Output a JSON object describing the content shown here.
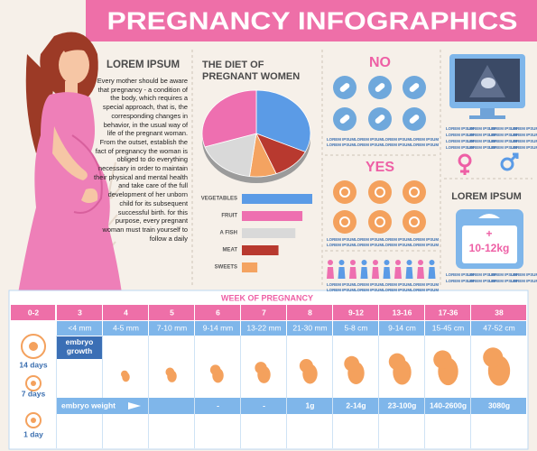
{
  "header": {
    "title": "PREGNANCY INFOGRAPHICS"
  },
  "intro": {
    "heading": "LOREM IPSUM",
    "text": "Every mother should be aware that pregnancy - a condition of the body, which requires a special approach, that is, the corresponding changes in behavior, in the usual way of life of the pregnant woman. From the outset, establish the fact of pregnancy the woman is obliged to do everything necessary in order to maintain their physical and mental health and take care of the full development of her unborn child for its subsequent successful birth. for this purpose, every pregnant woman must train yourself to follow a daily"
  },
  "diet": {
    "title": "THE DIET OF PREGNANT WOMEN",
    "categories": [
      "VEGETABLES",
      "FRUIT",
      "A FISH",
      "MEAT",
      "SWEETS"
    ],
    "values": [
      100,
      86,
      76,
      52,
      22
    ],
    "colors": [
      "#5b9be6",
      "#ee6fb0",
      "#d9d9d9",
      "#b8392f",
      "#f4a361"
    ],
    "pie": {
      "values": [
        32,
        12,
        8,
        18,
        30
      ],
      "colors": [
        "#5b9be6",
        "#b8392f",
        "#f4a361",
        "#d9d9d9",
        "#ee6fb0"
      ]
    }
  },
  "no": {
    "heading": "NO",
    "captions": [
      "LOREM IPSUM",
      "LOREM IPSUM",
      "LOREM IPSUM",
      "LOREM IPSUM",
      "LOREM IPSUM",
      "LOREM IPSUM",
      "LOREM IPSUM",
      "LOREM IPSUM"
    ]
  },
  "yes": {
    "heading": "YES",
    "captions": [
      "LOREM IPSUM",
      "LOREM IPSUM",
      "LOREM IPSUM",
      "LOREM IPSUM",
      "LOREM IPSUM",
      "LOREM IPSUM",
      "LOREM IPSUM",
      "LOREM IPSUM"
    ]
  },
  "people": {
    "captions": [
      "LOREM IPSUM",
      "LOREM IPSUM",
      "LOREM IPSUM",
      "LOREM IPSUM",
      "LOREM IPSUM",
      "LOREM IPSUM",
      "LOREM IPSUM",
      "LOREM IPSUM"
    ]
  },
  "ultrasound": {
    "captions": [
      "LOREM IPSUM",
      "LOREM IPSUM",
      "LOREM IPSUM",
      "LOREM IPSUM",
      "LOREM IPSUM",
      "LOREM IPSUM",
      "LOREM IPSUM",
      "LOREM IPSUM",
      "LOREM IPSUM",
      "LOREM IPSUM",
      "LOREM IPSUM",
      "LOREM IPSUM",
      "LOREM IPSUM",
      "LOREM IPSUM",
      "LOREM IPSUM",
      "LOREM IPSUM"
    ]
  },
  "weight_gain": {
    "heading": "LOREM IPSUM",
    "sign": "+",
    "value": "10-12kg",
    "captions": [
      "LOREM IPSUM",
      "LOREM IPSUM",
      "LOREM IPSUM",
      "LOREM IPSUM",
      "LOREM IPSUM",
      "LOREM IPSUM",
      "LOREM IPSUM",
      "LOREM IPSUM"
    ]
  },
  "timeline": {
    "title": "WEEK OF PREGNANCY",
    "growth_label": "embryo growth",
    "weight_label": "embryo weight",
    "days": [
      "14 days",
      "7 days",
      "1 day"
    ],
    "columns": [
      {
        "week": "0-2"
      },
      {
        "week": "3",
        "size": "<4 mm"
      },
      {
        "week": "4",
        "size": "4-5 mm"
      },
      {
        "week": "5",
        "size": "7-10 mm"
      },
      {
        "week": "6",
        "size": "9-14 mm",
        "weight": "-"
      },
      {
        "week": "7",
        "size": "13-22 mm",
        "weight": "-"
      },
      {
        "week": "8",
        "size": "21-30 mm",
        "weight": "1g"
      },
      {
        "week": "9-12",
        "size": "5-8 cm",
        "weight": "2-14g"
      },
      {
        "week": "13-16",
        "size": "9-14 cm",
        "weight": "23-100g"
      },
      {
        "week": "17-36",
        "size": "15-45 cm",
        "weight": "140-2600g"
      },
      {
        "week": "38",
        "size": "47-52 cm",
        "weight": "3080g"
      }
    ]
  }
}
